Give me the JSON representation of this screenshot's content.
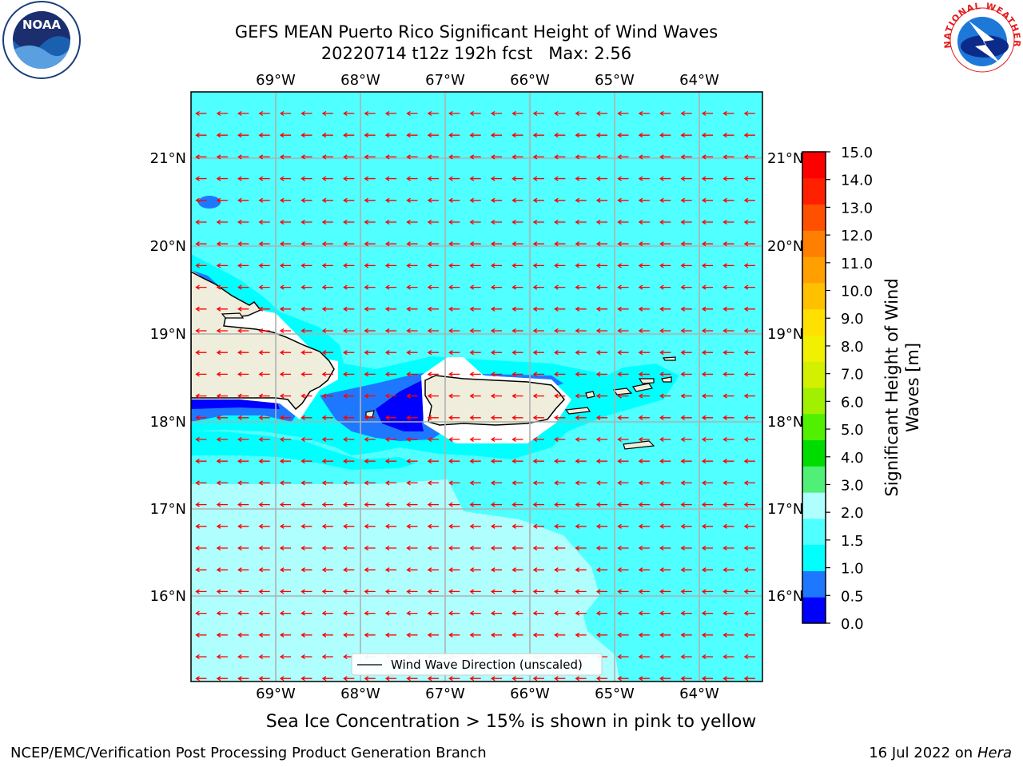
{
  "title_line1": "GEFS MEAN Puerto Rico Significant Height of Wind Waves",
  "title_line2": "20220714 t12z 192h fcst   Max: 2.56",
  "note": "Sea Ice Concentration > 15% is shown in pink to yellow",
  "footer_left": "NCEP/EMC/Verification Post Processing Product Generation Branch",
  "footer_date": "16 Jul 2022 on ",
  "footer_host": "Hera",
  "noaa_logo_text": "NOAA",
  "nws_logo_text": "NATIONAL WEATHER SERVICE",
  "legend_label": "Wind Wave Direction (unscaled)",
  "colorbar_label": "Significant Height of Wind Waves [m]",
  "colorbar_label_line1": "Significant Height of Wind",
  "colorbar_label_line2": "Waves [m]",
  "colorbar_ticks": [
    "0.0",
    "0.5",
    "1.0",
    "1.5",
    "2.0",
    "3.0",
    "4.0",
    "5.0",
    "6.0",
    "7.0",
    "8.0",
    "9.0",
    "10.0",
    "11.0",
    "12.0",
    "13.0",
    "14.0",
    "15.0"
  ],
  "colorbar_colors": [
    "#0000ff",
    "#1e78ff",
    "#00ffff",
    "#50ffff",
    "#afffff",
    "#50f078",
    "#00dc00",
    "#50f000",
    "#a0f000",
    "#d2f000",
    "#f0f000",
    "#ffe000",
    "#ffc000",
    "#ffa000",
    "#ff8000",
    "#ff5000",
    "#ff2000",
    "#ff0000"
  ],
  "lon_labels": [
    "69°W",
    "68°W",
    "67°W",
    "66°W",
    "65°W",
    "64°W"
  ],
  "lat_labels": [
    "21°N",
    "20°N",
    "19°N",
    "18°N",
    "17°N",
    "16°N"
  ],
  "lat_labels_right": [
    "21°N",
    "20°N",
    "19°N",
    "18°N",
    "17°N",
    "16°N"
  ],
  "map_colors": {
    "ocean_mid": "#50ffff",
    "ocean_light": "#afffff",
    "ocean_cyan": "#00ffff",
    "deep_blue": "#0000ff",
    "mid_blue": "#1e78ff",
    "land": "#efeedc",
    "arrow": "#ff0000"
  },
  "arrow_direction": "east-to-west"
}
